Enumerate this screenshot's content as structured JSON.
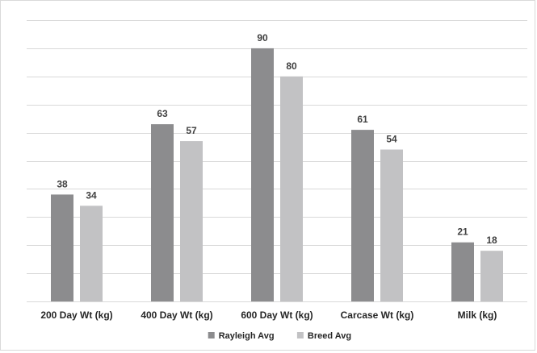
{
  "chart_data": {
    "type": "bar",
    "title": "",
    "xlabel": "",
    "ylabel": "",
    "categories": [
      "200 Day Wt (kg)",
      "400 Day Wt (kg)",
      "600 Day Wt (kg)",
      "Carcase Wt (kg)",
      "Milk (kg)"
    ],
    "series": [
      {
        "name": "Rayleigh Avg",
        "values": [
          38,
          63,
          90,
          61,
          21
        ],
        "color": "#8c8c8e"
      },
      {
        "name": "Breed Avg",
        "values": [
          34,
          57,
          80,
          54,
          18
        ],
        "color": "#c2c2c4"
      }
    ],
    "ylim": [
      0,
      100
    ],
    "grid": true,
    "legend": "bottom-center"
  }
}
